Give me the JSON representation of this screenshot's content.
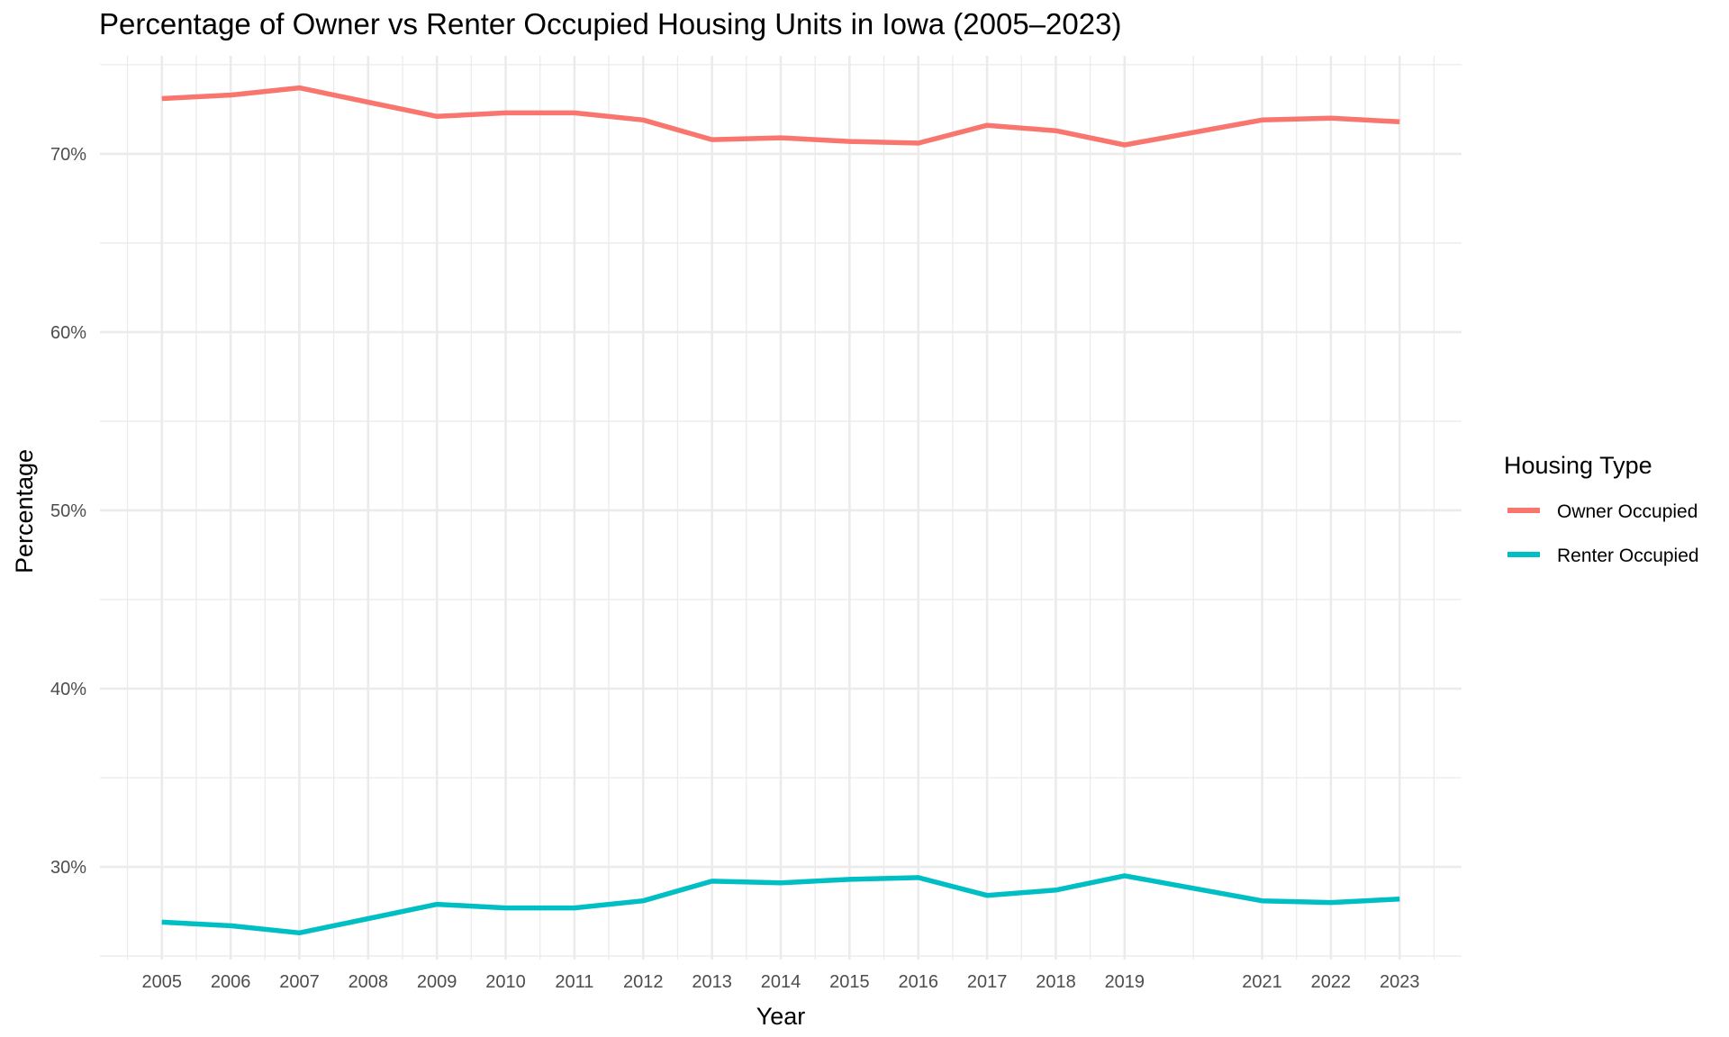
{
  "chart_data": {
    "type": "line",
    "title": "Percentage of Owner vs Renter Occupied Housing Units in Iowa (2005–2023)",
    "xlabel": "Year",
    "ylabel": "Percentage",
    "x": [
      2005,
      2006,
      2007,
      2008,
      2009,
      2010,
      2011,
      2012,
      2013,
      2014,
      2015,
      2016,
      2017,
      2018,
      2019,
      2021,
      2022,
      2023
    ],
    "xtick_labels": [
      "2005",
      "2006",
      "2007",
      "2008",
      "2009",
      "2010",
      "2011",
      "2012",
      "2013",
      "2014",
      "2015",
      "2016",
      "2017",
      "2018",
      "2019",
      "2021",
      "2022",
      "2023"
    ],
    "yticks": [
      30,
      40,
      50,
      60,
      70
    ],
    "ytick_labels": [
      "30%",
      "40%",
      "50%",
      "60%",
      "70%"
    ],
    "xlim": [
      2004.1,
      2023.9
    ],
    "ylim": [
      24.8,
      75.5
    ],
    "grid": true,
    "legend": {
      "title": "Housing Type",
      "position": "right"
    },
    "series": [
      {
        "name": "Owner Occupied",
        "color": "#F8766D",
        "values": [
          73.1,
          73.3,
          73.7,
          72.9,
          72.1,
          72.3,
          72.3,
          71.9,
          70.8,
          70.9,
          70.7,
          70.6,
          71.6,
          71.3,
          70.5,
          71.9,
          72.0,
          71.8
        ]
      },
      {
        "name": "Renter Occupied",
        "color": "#00BFC4",
        "values": [
          26.9,
          26.7,
          26.3,
          27.1,
          27.9,
          27.7,
          27.7,
          28.1,
          29.2,
          29.1,
          29.3,
          29.4,
          28.4,
          28.7,
          29.5,
          28.1,
          28.0,
          28.2
        ]
      }
    ]
  }
}
